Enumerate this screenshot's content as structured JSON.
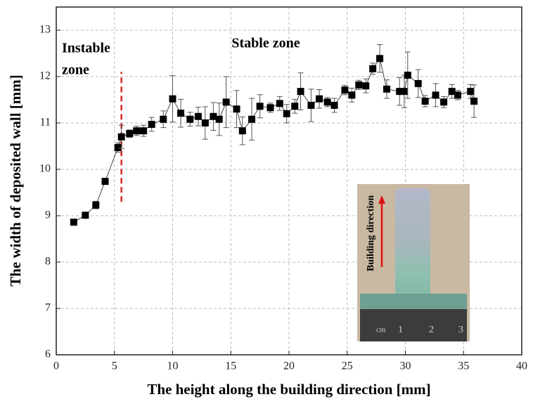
{
  "chart_data": {
    "type": "line",
    "xlabel": "The height along the building direction [mm]",
    "ylabel": "The width of deposited wall [mm]",
    "x": [
      1.5,
      2.5,
      3.4,
      4.2,
      5.3,
      5.6,
      6.3,
      6.9,
      7.5,
      8.2,
      9.2,
      10.0,
      10.7,
      11.5,
      12.2,
      12.8,
      13.5,
      14.0,
      14.6,
      15.5,
      16.0,
      16.8,
      17.5,
      18.4,
      19.2,
      19.8,
      20.5,
      21.0,
      21.9,
      22.6,
      23.3,
      23.9,
      24.8,
      25.4,
      26.0,
      26.6,
      27.2,
      27.8,
      28.4,
      29.5,
      29.9,
      30.2,
      31.1,
      31.7,
      32.6,
      33.3,
      34.0,
      34.5,
      35.6,
      35.9
    ],
    "values": [
      8.86,
      9.01,
      9.23,
      9.74,
      10.47,
      10.7,
      10.77,
      10.83,
      10.83,
      10.97,
      11.08,
      11.52,
      11.21,
      11.08,
      11.14,
      11.0,
      11.14,
      11.08,
      11.45,
      11.3,
      10.83,
      11.08,
      11.36,
      11.33,
      11.42,
      11.2,
      11.36,
      11.68,
      11.38,
      11.52,
      11.45,
      11.38,
      11.71,
      11.6,
      11.82,
      11.8,
      12.17,
      12.39,
      11.73,
      11.68,
      11.68,
      12.03,
      11.85,
      11.47,
      11.6,
      11.45,
      11.68,
      11.6,
      11.68,
      11.47
    ],
    "errors": [
      0.05,
      0.05,
      0.08,
      0.05,
      0.1,
      0.25,
      0.08,
      0.1,
      0.12,
      0.15,
      0.18,
      0.5,
      0.3,
      0.15,
      0.2,
      0.35,
      0.3,
      0.35,
      0.55,
      0.4,
      0.3,
      0.45,
      0.25,
      0.1,
      0.15,
      0.2,
      0.15,
      0.4,
      0.35,
      0.2,
      0.1,
      0.15,
      0.1,
      0.15,
      0.1,
      0.15,
      0.12,
      0.3,
      0.2,
      0.3,
      0.35,
      0.5,
      0.3,
      0.12,
      0.25,
      0.12,
      0.15,
      0.1,
      0.15,
      0.35
    ],
    "color": "#000000",
    "xlim": [
      0,
      40
    ],
    "xticks": [
      0,
      5,
      10,
      15,
      20,
      25,
      30,
      35,
      40
    ],
    "ylim": [
      6,
      13.5
    ],
    "yticks": [
      6,
      7,
      8,
      9,
      10,
      11,
      12,
      13
    ],
    "grid": true,
    "instable_label": [
      "Instable",
      "zone"
    ],
    "stable_label": "Stable zone",
    "divider": {
      "x": 5.6,
      "ylim": [
        9.3,
        12.1
      ],
      "color": "#d62728"
    },
    "inset": {
      "label": "Building direction",
      "ruler_labels": [
        "cm",
        "1",
        "2",
        "3"
      ]
    }
  }
}
